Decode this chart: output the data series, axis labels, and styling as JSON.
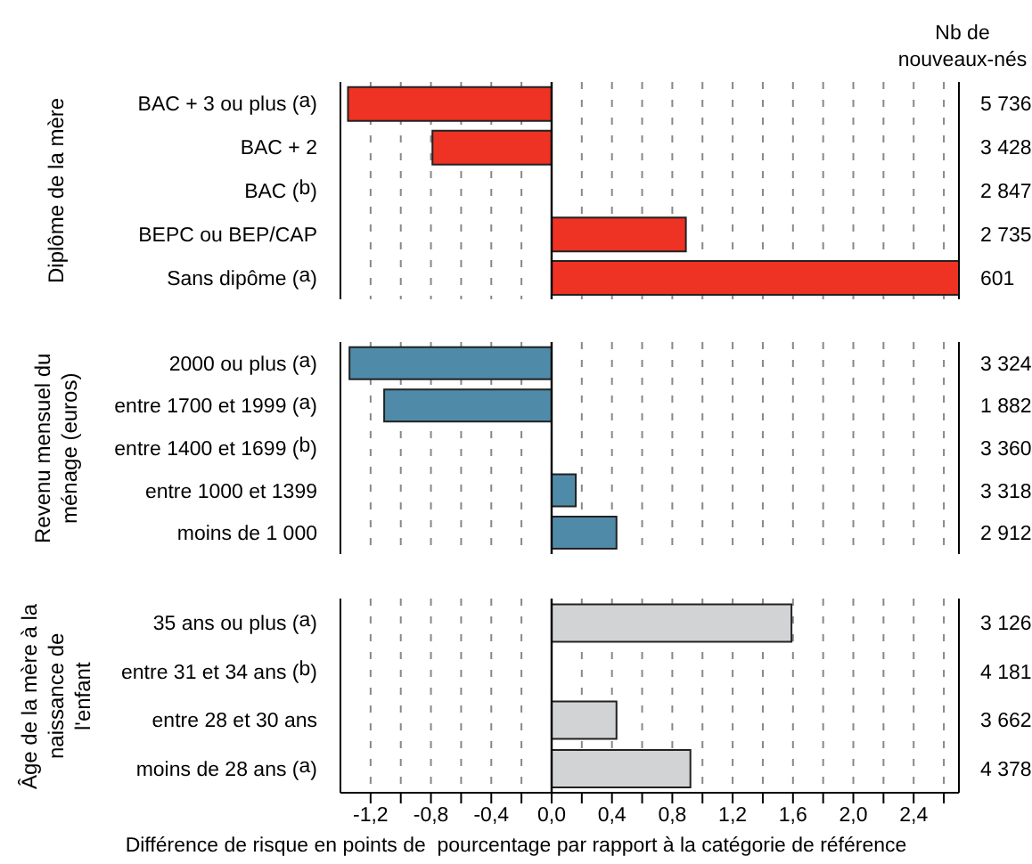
{
  "chart_data": [
    {
      "type": "bar",
      "orientation": "horizontal",
      "ylabel": "Diplôme de la mère",
      "categories": [
        "BAC + 3 ou plus ($^{a}$)",
        "BAC + 2",
        "BAC ($^{b}$)",
        "BEPC ou BEP/CAP",
        "Sans dipôme ($^{a}$)"
      ],
      "values": [
        -1.35,
        -0.79,
        0,
        0.89,
        2.7
      ],
      "color": "#ee3224",
      "xlim": [
        -1.4,
        2.7
      ],
      "xticks": [
        -1.2,
        -1.0,
        -0.8,
        -0.6,
        -0.4,
        -0.2,
        0,
        0.2,
        0.4,
        0.6,
        0.8,
        1.0,
        1.2,
        1.4,
        1.6,
        1.8,
        2.0,
        2.2,
        2.4,
        2.6
      ],
      "grid": "x",
      "tick_labels": "y",
      "ref_lines": [
        {
          "axis": "x",
          "value": 0,
          "color": "#000000"
        }
      ],
      "annotations": [
        "Nb de nouveaux-nés",
        "5 736",
        "3 428",
        "2 847",
        "2 735",
        "601"
      ]
    },
    {
      "type": "bar",
      "orientation": "horizontal",
      "ylabel": "Revenu mensuel du ménage (euros)",
      "categories": [
        "2000 ou plus ($^{a}$)",
        "entre 1700 et 1999 ($^{a}$)",
        "entre 1400 et 1699 ($^{b}$)",
        "entre 1000 et 1399",
        "moins de 1 000"
      ],
      "values": [
        -1.34,
        -1.11,
        0,
        0.16,
        0.43
      ],
      "color": "#4f8ba8",
      "xlim": [
        -1.4,
        2.7
      ],
      "xticks": [
        -1.2,
        -1.0,
        -0.8,
        -0.6,
        -0.4,
        -0.2,
        0,
        0.2,
        0.4,
        0.6,
        0.8,
        1.0,
        1.2,
        1.4,
        1.6,
        1.8,
        2.0,
        2.2,
        2.4,
        2.6
      ],
      "grid": "x",
      "tick_labels": "y",
      "ref_lines": [
        {
          "axis": "x",
          "value": 0,
          "color": "#000000"
        }
      ],
      "annotations": [
        "3 324",
        "1 882",
        "3 360",
        "3 318",
        "2 912"
      ]
    },
    {
      "type": "bar",
      "orientation": "horizontal",
      "ylabel": "Âge de la mère à la naissance de l'enfant",
      "xlabel": "Différence de risque en points de  pourcentage par rapport à la catégorie de référence",
      "categories": [
        "35 ans ou plus ($^{a}$)",
        "entre 31 et 34 ans ($^{b}$)",
        "entre 28 et 30 ans",
        "moins de 28 ans ($^{a}$)"
      ],
      "values": [
        1.59,
        0,
        0.43,
        0.92
      ],
      "color": "#d1d3d4",
      "xlim": [
        -1.4,
        2.7
      ],
      "xticks": [
        {
          "value": -1.2,
          "label": "-1,2"
        },
        {
          "value": -1.0,
          "label": null
        },
        {
          "value": -0.8,
          "label": "-0,8"
        },
        {
          "value": -0.6,
          "label": null
        },
        {
          "value": -0.4,
          "label": "-0,4"
        },
        {
          "value": -0.2,
          "label": null
        },
        {
          "value": 0,
          "label": "0,0"
        },
        {
          "value": 0.2,
          "label": null
        },
        {
          "value": 0.4,
          "label": "0,4"
        },
        {
          "value": 0.6,
          "label": null
        },
        {
          "value": 0.8,
          "label": "0,8"
        },
        {
          "value": 1.0,
          "label": null
        },
        {
          "value": 1.2,
          "label": "1,2"
        },
        {
          "value": 1.4,
          "label": null
        },
        {
          "value": 1.6,
          "label": "1,6"
        },
        {
          "value": 1.8,
          "label": null
        },
        {
          "value": 2.0,
          "label": "2,0"
        },
        {
          "value": 2.2,
          "label": null
        },
        {
          "value": 2.4,
          "label": "2,4"
        },
        {
          "value": 2.6,
          "label": null
        }
      ],
      "grid": "x",
      "ref_lines": [
        {
          "axis": "x",
          "value": 0,
          "color": "#000000"
        }
      ],
      "annotations": [
        "3 126",
        "4 181",
        "3 662",
        "4 378"
      ]
    }
  ]
}
